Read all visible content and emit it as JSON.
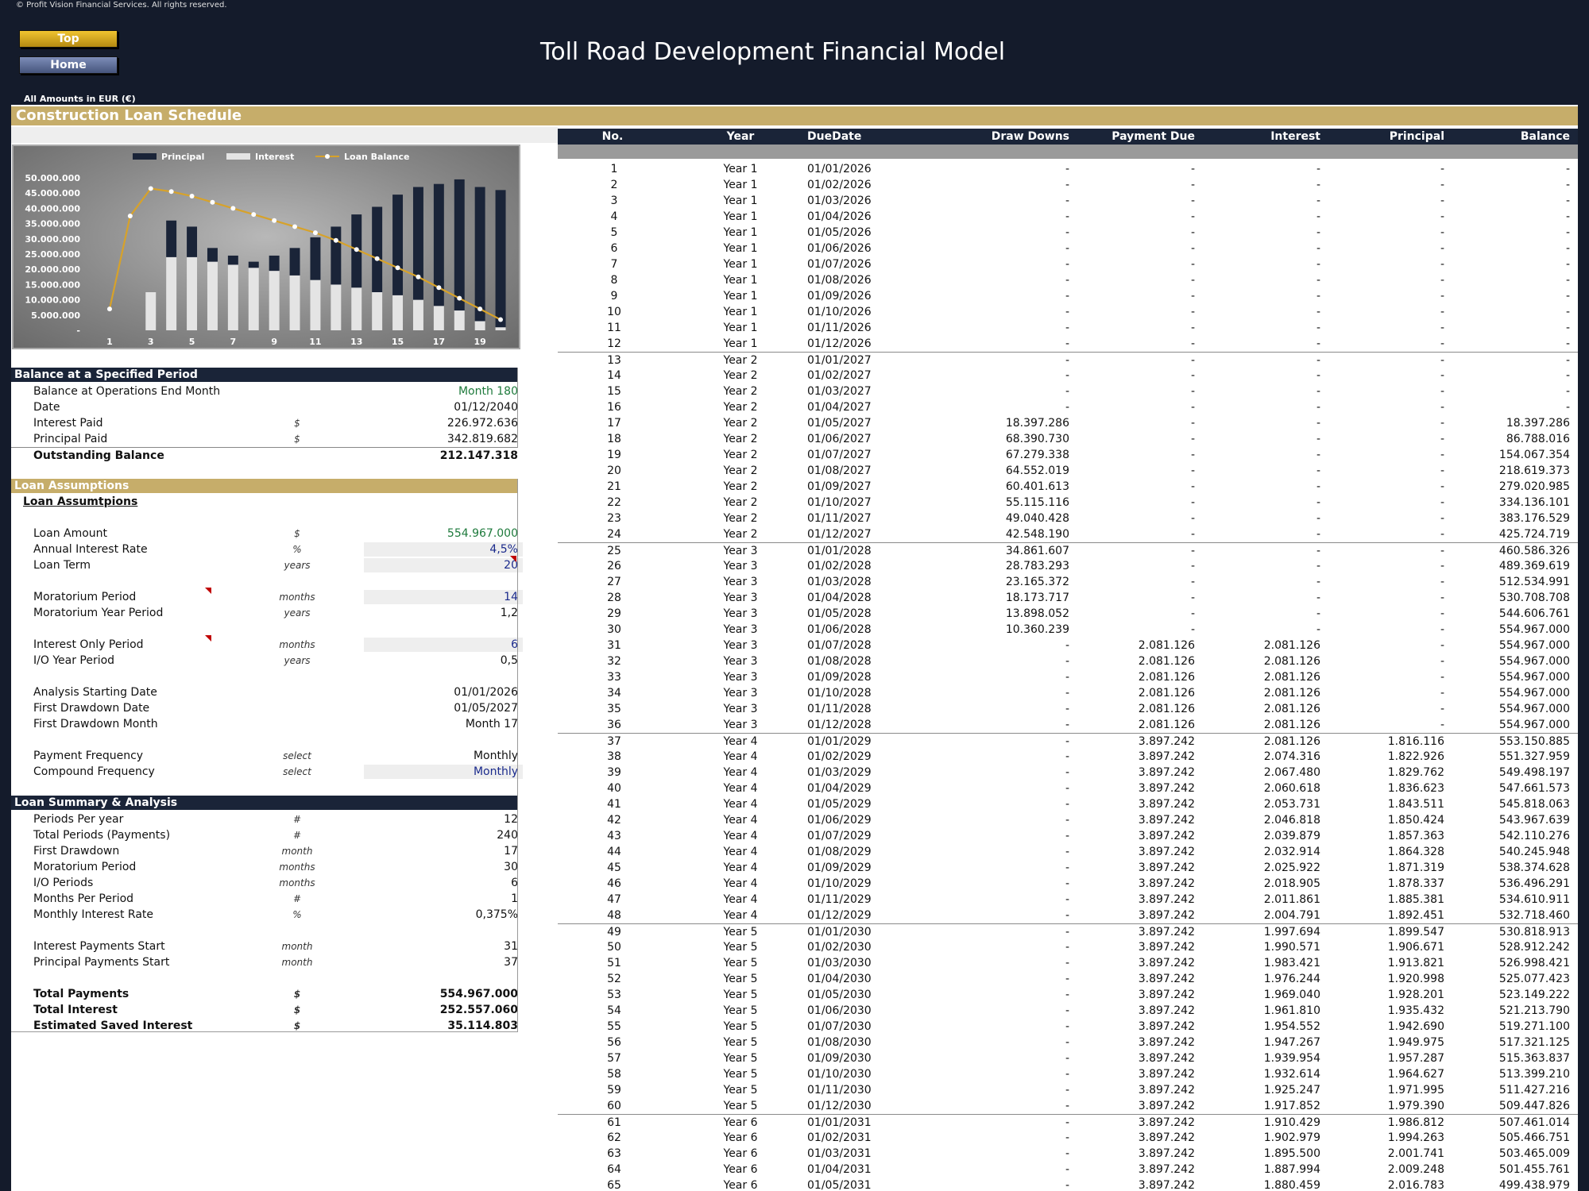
{
  "header": {
    "copyright": "© Profit Vision Financial Services. All rights reserved.",
    "top_button": "Top",
    "home_button": "Home",
    "title": "Toll Road Development Financial Model",
    "amounts_note": "All Amounts in  EUR (€)"
  },
  "section_title": "Construction Loan Schedule",
  "chart_data": {
    "type": "bar",
    "title": "",
    "series": [
      {
        "name": "Principal",
        "color": "#1a2438",
        "values": [
          0,
          0,
          0,
          12000000,
          10000000,
          4500000,
          3000000,
          2000000,
          5000000,
          9000000,
          14000000,
          19000000,
          24000000,
          28000000,
          33000000,
          37000000,
          40000000,
          43000000,
          44000000,
          45000000
        ]
      },
      {
        "name": "Interest",
        "color": "#e4e4e4",
        "values": [
          0,
          0,
          12500000,
          24000000,
          24000000,
          22500000,
          21500000,
          20500000,
          19500000,
          18000000,
          16500000,
          15000000,
          14000000,
          12500000,
          11500000,
          10000000,
          8000000,
          6500000,
          3000000,
          1000000
        ]
      },
      {
        "name": "Loan Balance",
        "color": "#d7a22a",
        "values": [
          7000000,
          37500000,
          46500000,
          45500000,
          44000000,
          42000000,
          40000000,
          38000000,
          36000000,
          34000000,
          32000000,
          29500000,
          26500000,
          23500000,
          20500000,
          17500000,
          14000000,
          10500000,
          7000000,
          3500000
        ]
      }
    ],
    "x": [
      1,
      2,
      3,
      4,
      5,
      6,
      7,
      8,
      9,
      10,
      11,
      12,
      13,
      14,
      15,
      16,
      17,
      18,
      19,
      20
    ],
    "x_tick_labels": [
      "1",
      "3",
      "5",
      "7",
      "9",
      "11",
      "13",
      "15",
      "17",
      "19"
    ],
    "y_tick_labels": [
      "-",
      "5.000.000",
      "10.000.000",
      "15.000.000",
      "20.000.000",
      "25.000.000",
      "30.000.000",
      "35.000.000",
      "40.000.000",
      "45.000.000",
      "50.000.000"
    ],
    "ylim": [
      0,
      50000000
    ],
    "legend_position": "top"
  },
  "balance_panel": {
    "title": "Balance at a Specified Period",
    "rows": [
      {
        "label": "Balance at Operations End Month",
        "unit": "",
        "value": "Month 180"
      },
      {
        "label": "Date",
        "unit": "",
        "value": "01/12/2040"
      },
      {
        "label": "Interest Paid",
        "unit": "$",
        "value": "226.972.636"
      },
      {
        "label": "Principal Paid",
        "unit": "$",
        "value": "342.819.682"
      },
      {
        "label": "Outstanding Balance",
        "unit": "",
        "value": "212.147.318"
      }
    ]
  },
  "assumptions_panel": {
    "title": "Loan Assumptions",
    "subtitle": "Loan Assumtpions",
    "rows": [
      {
        "label": "Loan Amount",
        "unit": "$",
        "value": "554.967.000"
      },
      {
        "label": "Annual Interest Rate",
        "unit": "%",
        "value": "4,5%"
      },
      {
        "label": "Loan Term",
        "unit": "years",
        "value": "20"
      },
      {
        "label": "Moratorium Period",
        "unit": "months",
        "value": "14"
      },
      {
        "label": "Moratorium Year Period",
        "unit": "years",
        "value": "1,2"
      },
      {
        "label": "Interest Only Period",
        "unit": "months",
        "value": "6"
      },
      {
        "label": "I/O Year Period",
        "unit": "years",
        "value": "0,5"
      },
      {
        "label": "Analysis Starting Date",
        "unit": "",
        "value": "01/01/2026"
      },
      {
        "label": "First Drawdown Date",
        "unit": "",
        "value": "01/05/2027"
      },
      {
        "label": "First Drawdown Month",
        "unit": "",
        "value": "Month 17"
      },
      {
        "label": "Payment Frequency",
        "unit": "select",
        "value": "Monthly"
      },
      {
        "label": "Compound Frequency",
        "unit": "select",
        "value": "Monthly"
      }
    ]
  },
  "summary_panel": {
    "title": "Loan Summary & Analysis",
    "rows": [
      {
        "label": "Periods Per year",
        "unit": "#",
        "value": "12"
      },
      {
        "label": "Total Periods (Payments)",
        "unit": "#",
        "value": "240"
      },
      {
        "label": "First Drawdown",
        "unit": "month",
        "value": "17"
      },
      {
        "label": "Moratorium Period",
        "unit": "months",
        "value": "30"
      },
      {
        "label": "I/O Periods",
        "unit": "months",
        "value": "6"
      },
      {
        "label": "Months Per Period",
        "unit": "#",
        "value": "1"
      },
      {
        "label": "Monthly Interest Rate",
        "unit": "%",
        "value": "0,375%"
      },
      {
        "label": "Interest Payments Start",
        "unit": "month",
        "value": "31"
      },
      {
        "label": "Principal Payments Start",
        "unit": "month",
        "value": "37"
      },
      {
        "label": "Total Payments",
        "unit": "$",
        "value": "554.967.000"
      },
      {
        "label": "Total Interest",
        "unit": "$",
        "value": "252.557.060"
      },
      {
        "label": "Estimated Saved Interest",
        "unit": "$",
        "value": "35.114.803"
      }
    ]
  },
  "schedule": {
    "headers": [
      "No.",
      "Year",
      "DueDate",
      "Draw Downs",
      "Payment Due",
      "Interest",
      "Principal",
      "Balance"
    ],
    "rows": [
      [
        "1",
        "Year 1",
        "01/01/2026",
        "-",
        "-",
        "-",
        "-",
        "-"
      ],
      [
        "2",
        "Year 1",
        "01/02/2026",
        "-",
        "-",
        "-",
        "-",
        "-"
      ],
      [
        "3",
        "Year 1",
        "01/03/2026",
        "-",
        "-",
        "-",
        "-",
        "-"
      ],
      [
        "4",
        "Year 1",
        "01/04/2026",
        "-",
        "-",
        "-",
        "-",
        "-"
      ],
      [
        "5",
        "Year 1",
        "01/05/2026",
        "-",
        "-",
        "-",
        "-",
        "-"
      ],
      [
        "6",
        "Year 1",
        "01/06/2026",
        "-",
        "-",
        "-",
        "-",
        "-"
      ],
      [
        "7",
        "Year 1",
        "01/07/2026",
        "-",
        "-",
        "-",
        "-",
        "-"
      ],
      [
        "8",
        "Year 1",
        "01/08/2026",
        "-",
        "-",
        "-",
        "-",
        "-"
      ],
      [
        "9",
        "Year 1",
        "01/09/2026",
        "-",
        "-",
        "-",
        "-",
        "-"
      ],
      [
        "10",
        "Year 1",
        "01/10/2026",
        "-",
        "-",
        "-",
        "-",
        "-"
      ],
      [
        "11",
        "Year 1",
        "01/11/2026",
        "-",
        "-",
        "-",
        "-",
        "-"
      ],
      [
        "12",
        "Year 1",
        "01/12/2026",
        "-",
        "-",
        "-",
        "-",
        "-"
      ],
      [
        "13",
        "Year 2",
        "01/01/2027",
        "-",
        "-",
        "-",
        "-",
        "-"
      ],
      [
        "14",
        "Year 2",
        "01/02/2027",
        "-",
        "-",
        "-",
        "-",
        "-"
      ],
      [
        "15",
        "Year 2",
        "01/03/2027",
        "-",
        "-",
        "-",
        "-",
        "-"
      ],
      [
        "16",
        "Year 2",
        "01/04/2027",
        "-",
        "-",
        "-",
        "-",
        "-"
      ],
      [
        "17",
        "Year 2",
        "01/05/2027",
        "18.397.286",
        "-",
        "-",
        "-",
        "18.397.286"
      ],
      [
        "18",
        "Year 2",
        "01/06/2027",
        "68.390.730",
        "-",
        "-",
        "-",
        "86.788.016"
      ],
      [
        "19",
        "Year 2",
        "01/07/2027",
        "67.279.338",
        "-",
        "-",
        "-",
        "154.067.354"
      ],
      [
        "20",
        "Year 2",
        "01/08/2027",
        "64.552.019",
        "-",
        "-",
        "-",
        "218.619.373"
      ],
      [
        "21",
        "Year 2",
        "01/09/2027",
        "60.401.613",
        "-",
        "-",
        "-",
        "279.020.985"
      ],
      [
        "22",
        "Year 2",
        "01/10/2027",
        "55.115.116",
        "-",
        "-",
        "-",
        "334.136.101"
      ],
      [
        "23",
        "Year 2",
        "01/11/2027",
        "49.040.428",
        "-",
        "-",
        "-",
        "383.176.529"
      ],
      [
        "24",
        "Year 2",
        "01/12/2027",
        "42.548.190",
        "-",
        "-",
        "-",
        "425.724.719"
      ],
      [
        "25",
        "Year 3",
        "01/01/2028",
        "34.861.607",
        "-",
        "-",
        "-",
        "460.586.326"
      ],
      [
        "26",
        "Year 3",
        "01/02/2028",
        "28.783.293",
        "-",
        "-",
        "-",
        "489.369.619"
      ],
      [
        "27",
        "Year 3",
        "01/03/2028",
        "23.165.372",
        "-",
        "-",
        "-",
        "512.534.991"
      ],
      [
        "28",
        "Year 3",
        "01/04/2028",
        "18.173.717",
        "-",
        "-",
        "-",
        "530.708.708"
      ],
      [
        "29",
        "Year 3",
        "01/05/2028",
        "13.898.052",
        "-",
        "-",
        "-",
        "544.606.761"
      ],
      [
        "30",
        "Year 3",
        "01/06/2028",
        "10.360.239",
        "-",
        "-",
        "-",
        "554.967.000"
      ],
      [
        "31",
        "Year 3",
        "01/07/2028",
        "-",
        "2.081.126",
        "2.081.126",
        "-",
        "554.967.000"
      ],
      [
        "32",
        "Year 3",
        "01/08/2028",
        "-",
        "2.081.126",
        "2.081.126",
        "-",
        "554.967.000"
      ],
      [
        "33",
        "Year 3",
        "01/09/2028",
        "-",
        "2.081.126",
        "2.081.126",
        "-",
        "554.967.000"
      ],
      [
        "34",
        "Year 3",
        "01/10/2028",
        "-",
        "2.081.126",
        "2.081.126",
        "-",
        "554.967.000"
      ],
      [
        "35",
        "Year 3",
        "01/11/2028",
        "-",
        "2.081.126",
        "2.081.126",
        "-",
        "554.967.000"
      ],
      [
        "36",
        "Year 3",
        "01/12/2028",
        "-",
        "2.081.126",
        "2.081.126",
        "-",
        "554.967.000"
      ],
      [
        "37",
        "Year 4",
        "01/01/2029",
        "-",
        "3.897.242",
        "2.081.126",
        "1.816.116",
        "553.150.885"
      ],
      [
        "38",
        "Year 4",
        "01/02/2029",
        "-",
        "3.897.242",
        "2.074.316",
        "1.822.926",
        "551.327.959"
      ],
      [
        "39",
        "Year 4",
        "01/03/2029",
        "-",
        "3.897.242",
        "2.067.480",
        "1.829.762",
        "549.498.197"
      ],
      [
        "40",
        "Year 4",
        "01/04/2029",
        "-",
        "3.897.242",
        "2.060.618",
        "1.836.623",
        "547.661.573"
      ],
      [
        "41",
        "Year 4",
        "01/05/2029",
        "-",
        "3.897.242",
        "2.053.731",
        "1.843.511",
        "545.818.063"
      ],
      [
        "42",
        "Year 4",
        "01/06/2029",
        "-",
        "3.897.242",
        "2.046.818",
        "1.850.424",
        "543.967.639"
      ],
      [
        "43",
        "Year 4",
        "01/07/2029",
        "-",
        "3.897.242",
        "2.039.879",
        "1.857.363",
        "542.110.276"
      ],
      [
        "44",
        "Year 4",
        "01/08/2029",
        "-",
        "3.897.242",
        "2.032.914",
        "1.864.328",
        "540.245.948"
      ],
      [
        "45",
        "Year 4",
        "01/09/2029",
        "-",
        "3.897.242",
        "2.025.922",
        "1.871.319",
        "538.374.628"
      ],
      [
        "46",
        "Year 4",
        "01/10/2029",
        "-",
        "3.897.242",
        "2.018.905",
        "1.878.337",
        "536.496.291"
      ],
      [
        "47",
        "Year 4",
        "01/11/2029",
        "-",
        "3.897.242",
        "2.011.861",
        "1.885.381",
        "534.610.911"
      ],
      [
        "48",
        "Year 4",
        "01/12/2029",
        "-",
        "3.897.242",
        "2.004.791",
        "1.892.451",
        "532.718.460"
      ],
      [
        "49",
        "Year 5",
        "01/01/2030",
        "-",
        "3.897.242",
        "1.997.694",
        "1.899.547",
        "530.818.913"
      ],
      [
        "50",
        "Year 5",
        "01/02/2030",
        "-",
        "3.897.242",
        "1.990.571",
        "1.906.671",
        "528.912.242"
      ],
      [
        "51",
        "Year 5",
        "01/03/2030",
        "-",
        "3.897.242",
        "1.983.421",
        "1.913.821",
        "526.998.421"
      ],
      [
        "52",
        "Year 5",
        "01/04/2030",
        "-",
        "3.897.242",
        "1.976.244",
        "1.920.998",
        "525.077.423"
      ],
      [
        "53",
        "Year 5",
        "01/05/2030",
        "-",
        "3.897.242",
        "1.969.040",
        "1.928.201",
        "523.149.222"
      ],
      [
        "54",
        "Year 5",
        "01/06/2030",
        "-",
        "3.897.242",
        "1.961.810",
        "1.935.432",
        "521.213.790"
      ],
      [
        "55",
        "Year 5",
        "01/07/2030",
        "-",
        "3.897.242",
        "1.954.552",
        "1.942.690",
        "519.271.100"
      ],
      [
        "56",
        "Year 5",
        "01/08/2030",
        "-",
        "3.897.242",
        "1.947.267",
        "1.949.975",
        "517.321.125"
      ],
      [
        "57",
        "Year 5",
        "01/09/2030",
        "-",
        "3.897.242",
        "1.939.954",
        "1.957.287",
        "515.363.837"
      ],
      [
        "58",
        "Year 5",
        "01/10/2030",
        "-",
        "3.897.242",
        "1.932.614",
        "1.964.627",
        "513.399.210"
      ],
      [
        "59",
        "Year 5",
        "01/11/2030",
        "-",
        "3.897.242",
        "1.925.247",
        "1.971.995",
        "511.427.216"
      ],
      [
        "60",
        "Year 5",
        "01/12/2030",
        "-",
        "3.897.242",
        "1.917.852",
        "1.979.390",
        "509.447.826"
      ],
      [
        "61",
        "Year 6",
        "01/01/2031",
        "-",
        "3.897.242",
        "1.910.429",
        "1.986.812",
        "507.461.014"
      ],
      [
        "62",
        "Year 6",
        "01/02/2031",
        "-",
        "3.897.242",
        "1.902.979",
        "1.994.263",
        "505.466.751"
      ],
      [
        "63",
        "Year 6",
        "01/03/2031",
        "-",
        "3.897.242",
        "1.895.500",
        "2.001.741",
        "503.465.009"
      ],
      [
        "64",
        "Year 6",
        "01/04/2031",
        "-",
        "3.897.242",
        "1.887.994",
        "2.009.248",
        "501.455.761"
      ],
      [
        "65",
        "Year 6",
        "01/05/2031",
        "-",
        "3.897.242",
        "1.880.459",
        "2.016.783",
        "499.438.979"
      ]
    ]
  }
}
